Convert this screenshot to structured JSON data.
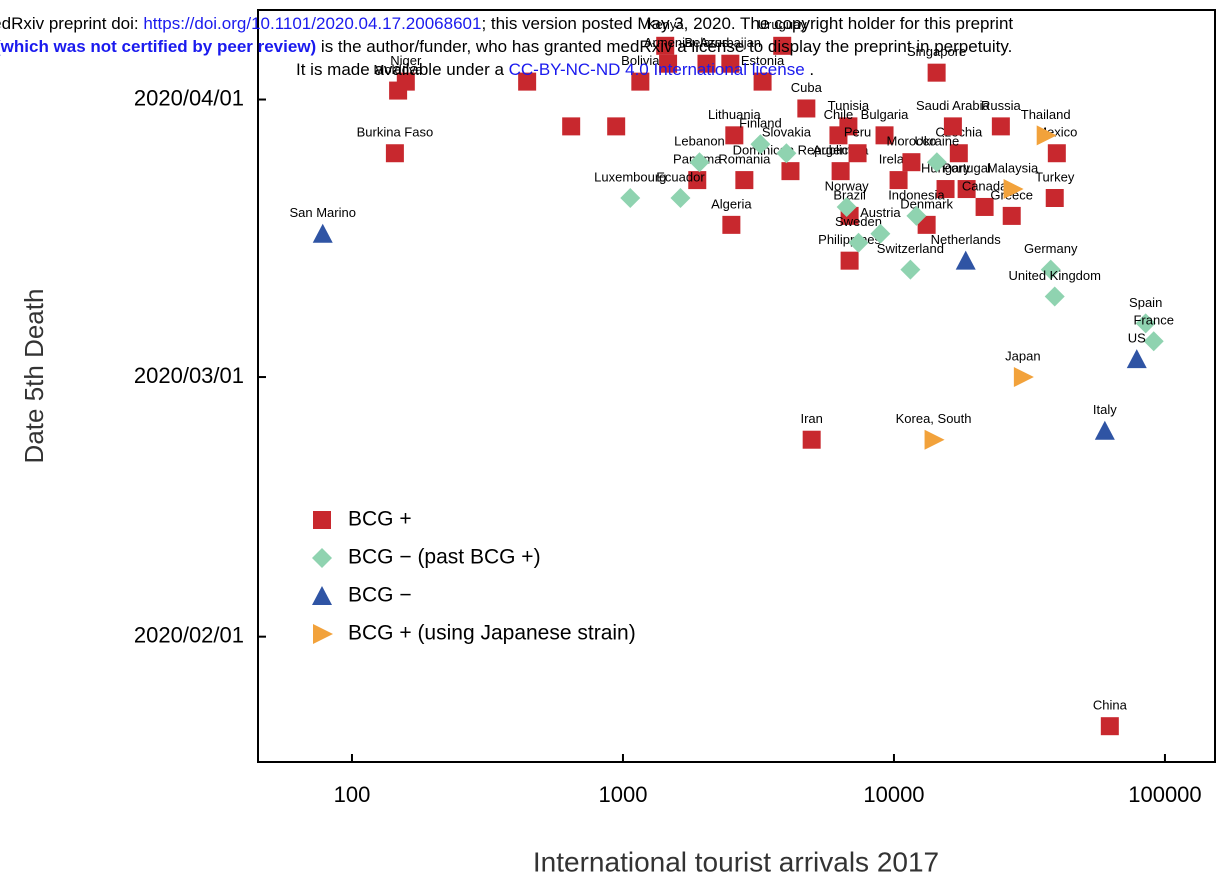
{
  "header": {
    "line1": [
      "medRxiv preprint doi: ",
      "https://doi.org/10.1101/2020.04.17.20068601",
      "; this version posted May 3, 2020. The copyright holder for this preprint"
    ],
    "line2": [
      "(which was not certified by peer review)",
      " is the author/funder, who has granted medRxiv a license to display the preprint in perpetuity."
    ],
    "line3": [
      "It is made available under a ",
      "CC-BY-NC-ND 4.0 International license",
      " ."
    ]
  },
  "chart_data": {
    "type": "scatter",
    "xlabel": "International tourist arrivals 2017",
    "ylabel": "Date 5th Death",
    "xscale": "log",
    "xlim": [
      45,
      153000
    ],
    "xticks": [
      100,
      1000,
      10000,
      100000
    ],
    "ylim": [
      "2020/01/18",
      "2020/04/11"
    ],
    "yticks": [
      "2020/02/01",
      "2020/03/01",
      "2020/04/01"
    ],
    "legend": "lower left",
    "series": [
      {
        "name": "BCG +",
        "color": "#c8282e",
        "marker": "square",
        "labels": [
          "Niger",
          "Moldova",
          "Burkina Faso",
          null,
          null,
          null,
          "Bolivia",
          "Kenya",
          "Armenia",
          "Belarus",
          "Azerbaijan",
          "Estonia",
          "Uruguay",
          "Cuba",
          "Lithuania",
          "Romania",
          "Panama",
          "Algeria",
          "Tunisia",
          "Chile",
          "Dominican Republic",
          "Argentina",
          "Peru",
          "Brazil",
          "Philippines",
          "Ireland",
          "Bulgaria",
          "Morocco",
          "Czechia",
          "Hungary",
          "Portugal",
          "Denmark",
          "Canada",
          "Greece",
          "Turkey",
          "Russia",
          "Saudi Arabia",
          "Singapore",
          "Mexico",
          "Iran",
          "China"
        ],
        "x": [
          158,
          148,
          144,
          443,
          644,
          944,
          1159,
          1432,
          1467,
          2033,
          2490,
          3275,
          3870,
          4750,
          2576,
          2805,
          1880,
          2512,
          6790,
          6240,
          4150,
          6355,
          7340,
          6860,
          6860,
          10400,
          9230,
          11600,
          17350,
          15500,
          18540,
          13200,
          21600,
          27200,
          39200,
          24800,
          16500,
          14370,
          39900,
          4970,
          62600
        ],
        "y": [
          "2020/04/03",
          "2020/04/02",
          "2020/03/26",
          "2020/04/03",
          "2020/03/29",
          "2020/03/29",
          "2020/04/03",
          "2020/04/07",
          "2020/04/05",
          "2020/04/05",
          "2020/04/05",
          "2020/04/03",
          "2020/04/07",
          "2020/03/31",
          "2020/03/28",
          "2020/03/23",
          "2020/03/23",
          "2020/03/18",
          "2020/03/29",
          "2020/03/28",
          "2020/03/24",
          "2020/03/24",
          "2020/03/26",
          "2020/03/19",
          "2020/03/14",
          "2020/03/23",
          "2020/03/28",
          "2020/03/25",
          "2020/03/26",
          "2020/03/22",
          "2020/03/22",
          "2020/03/18",
          "2020/03/20",
          "2020/03/19",
          "2020/03/21",
          "2020/03/29",
          "2020/03/29",
          "2020/04/04",
          "2020/03/26",
          "2020/02/23",
          "2020/01/22"
        ]
      },
      {
        "name": "BCG − (past BCG +)",
        "color": "#8fd3b0",
        "marker": "diamond",
        "labels": [
          "Luxembourg",
          "Ecuador",
          "Lebanon",
          "Finland",
          "Slovakia",
          "Norway",
          "Sweden",
          "Austria",
          "Switzerland",
          "Indonesia",
          "Ukraine",
          "Germany",
          "United Kingdom",
          "Spain",
          "France"
        ],
        "x": [
          1064,
          1630,
          1916,
          3215,
          4010,
          6690,
          7400,
          8910,
          11500,
          12100,
          14400,
          37900,
          39200,
          84900,
          90900
        ],
        "y": [
          "2020/03/21",
          "2020/03/21",
          "2020/03/25",
          "2020/03/27",
          "2020/03/26",
          "2020/03/20",
          "2020/03/16",
          "2020/03/17",
          "2020/03/13",
          "2020/03/19",
          "2020/03/25",
          "2020/03/13",
          "2020/03/10",
          "2020/03/07",
          "2020/03/05"
        ]
      },
      {
        "name": "BCG −",
        "color": "#2f54a4",
        "marker": "triangle-up",
        "labels": [
          "San Marino",
          "Netherlands",
          "Italy",
          "US"
        ],
        "x": [
          78,
          18400,
          60000,
          78700
        ],
        "y": [
          "2020/03/17",
          "2020/03/14",
          "2020/02/24",
          "2020/03/03"
        ]
      },
      {
        "name": "BCG + (using Japanese strain)",
        "color": "#f2a23b",
        "marker": "triangle-right",
        "labels": [
          "Thailand",
          "Japan",
          "Korea, South",
          "Malaysia"
        ],
        "x": [
          36300,
          29900,
          14000,
          27400
        ],
        "y": [
          "2020/03/28",
          "2020/03/01",
          "2020/02/23",
          "2020/03/22"
        ]
      }
    ]
  }
}
